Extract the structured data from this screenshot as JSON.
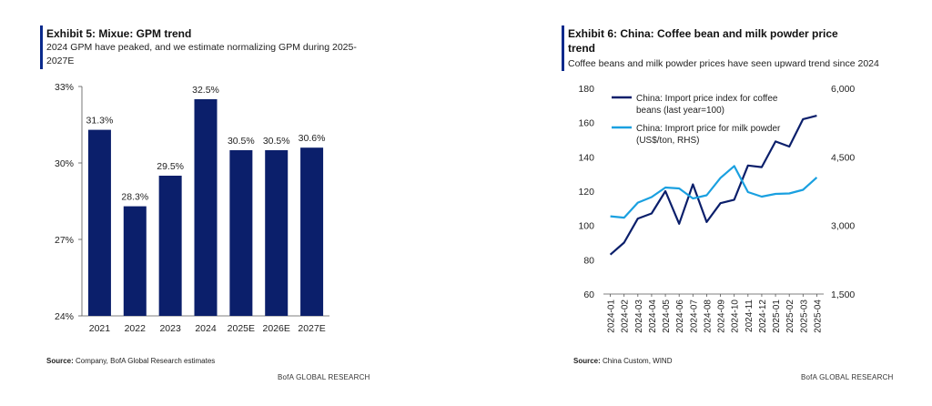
{
  "left": {
    "title": "Exhibit 5: Mixue: GPM trend",
    "subtitle_line1": "2024 GPM have peaked, and we estimate normalizing GPM during 2025-",
    "subtitle_line2": "2027E",
    "source_label": "Source:",
    "source_text": " Company, BofA Global Research estimates",
    "footer": "BofA GLOBAL RESEARCH"
  },
  "right": {
    "title_line1": "Exhibit 6: China: Coffee bean and milk powder price",
    "title_line2": "trend",
    "subtitle": "Coffee beans and milk powder prices have seen upward trend since 2024",
    "source_label": "Source:",
    "source_text": " China Custom, WIND",
    "footer": "BofA GLOBAL RESEARCH"
  },
  "colors": {
    "navy": "#0b1f6b",
    "light_blue": "#1aa0e0",
    "accent": "#0a2a8c"
  },
  "chart_data": [
    {
      "type": "bar",
      "categories": [
        "2021",
        "2022",
        "2023",
        "2024",
        "2025E",
        "2026E",
        "2027E"
      ],
      "values": [
        31.3,
        28.3,
        29.5,
        32.5,
        30.5,
        30.5,
        30.6
      ],
      "data_labels": [
        "31.3%",
        "28.3%",
        "29.5%",
        "32.5%",
        "30.5%",
        "30.5%",
        "30.6%"
      ],
      "ylim": [
        24,
        33
      ],
      "yticks": [
        24,
        27,
        30,
        33
      ],
      "ytick_labels": [
        "24%",
        "27%",
        "30%",
        "33%"
      ],
      "grid": false
    },
    {
      "type": "line",
      "x": [
        "2024-01",
        "2024-02",
        "2024-03",
        "2024-04",
        "2024-05",
        "2024-06",
        "2024-07",
        "2024-08",
        "2024-09",
        "2024-10",
        "2024-11",
        "2024-12",
        "2025-01",
        "2025-02",
        "2025-03",
        "2025-04"
      ],
      "series": [
        {
          "name": "China: Import price index for coffee beans (last year=100)",
          "legend_line1": "China: Import price index for coffee",
          "legend_line2": "beans (last year=100)",
          "axis": "left",
          "values": [
            83,
            90,
            104,
            107,
            120,
            101,
            124,
            102,
            113,
            115,
            135,
            134,
            149,
            146,
            162,
            164
          ]
        },
        {
          "name": "China: Imprort price for milk powder (US$/ton, RHS)",
          "legend_line1": "China: Imprort price for milk powder",
          "legend_line2": "(US$/ton, RHS)",
          "axis": "right",
          "values": [
            3200,
            3170,
            3500,
            3620,
            3830,
            3810,
            3590,
            3660,
            4040,
            4300,
            3730,
            3630,
            3690,
            3700,
            3780,
            4050
          ]
        }
      ],
      "ylim_left": [
        60,
        180
      ],
      "yticks_left": [
        60,
        80,
        100,
        120,
        140,
        160,
        180
      ],
      "ylim_right": [
        1500,
        6000
      ],
      "yticks_right": [
        1500,
        3000,
        4500,
        6000
      ],
      "ytick_labels_right": [
        "1,500",
        "3,000",
        "4,500",
        "6,000"
      ],
      "legend_placement": "top-left",
      "grid": false
    }
  ]
}
